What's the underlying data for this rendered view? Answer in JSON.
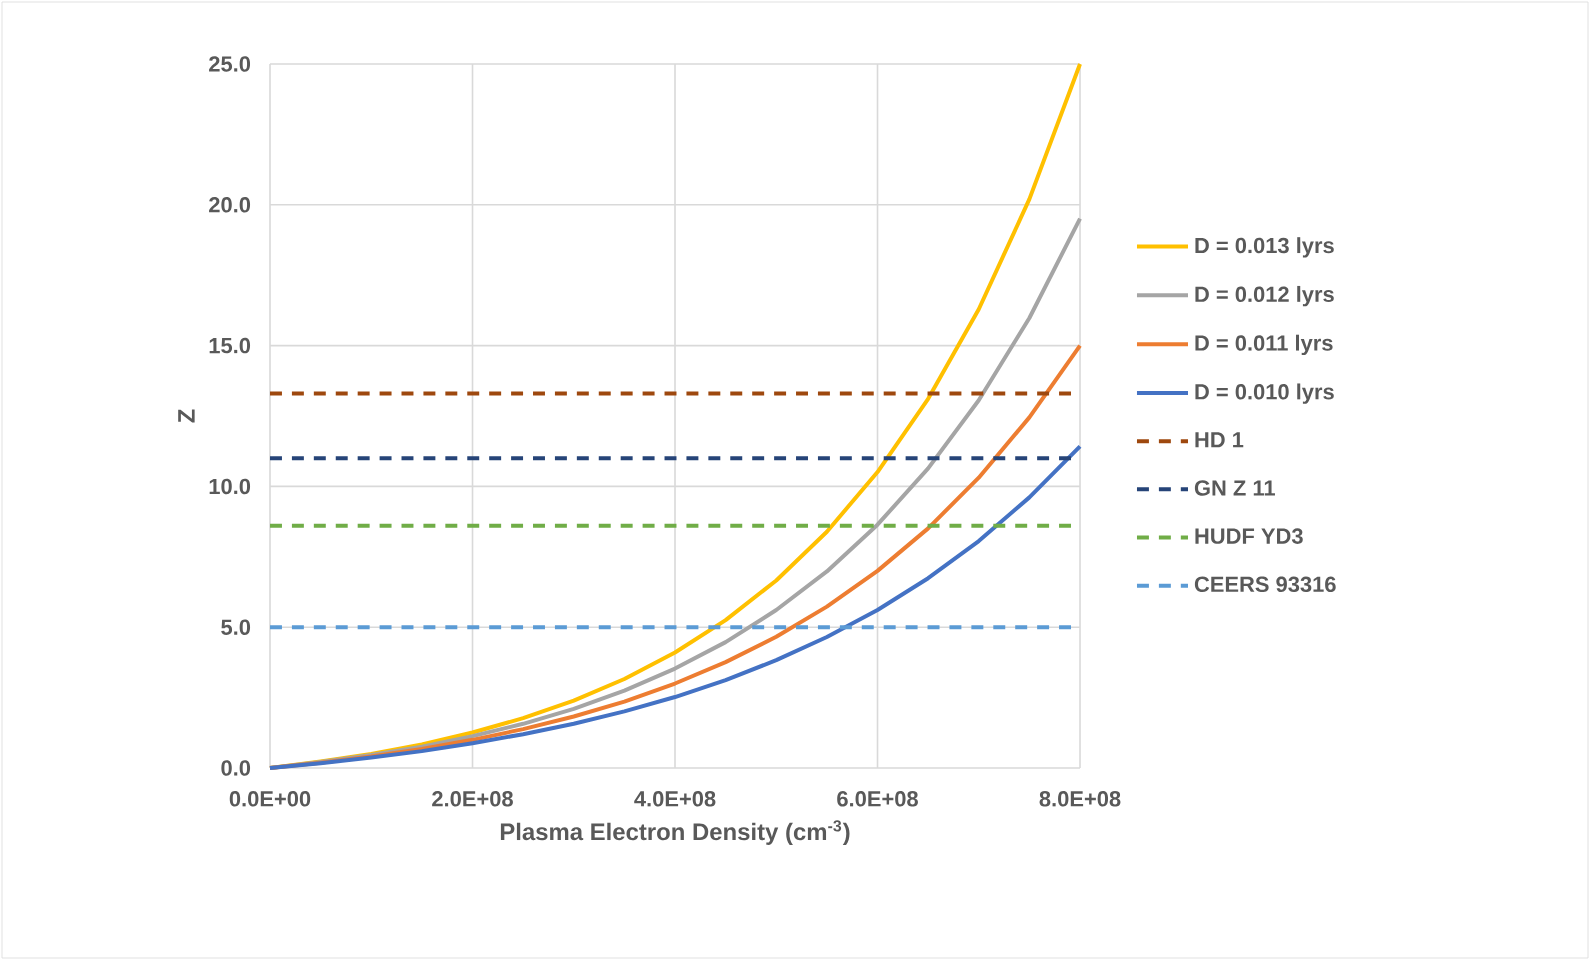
{
  "chart_data": {
    "type": "line",
    "xlabel": "Plasma Electron Density (cm$^{-3}$)",
    "ylabel": "Z",
    "x": [
      0,
      50000000,
      100000000,
      150000000,
      200000000,
      250000000,
      300000000,
      350000000,
      400000000,
      450000000,
      500000000,
      550000000,
      600000000,
      650000000,
      700000000,
      750000000,
      800000000
    ],
    "series": [
      {
        "name": "D = 0.013 lyrs",
        "color": "#ffc000",
        "line_style": "solid",
        "values": [
          0,
          0.23,
          0.5,
          0.84,
          1.26,
          1.77,
          2.39,
          3.16,
          4.1,
          5.25,
          6.66,
          8.39,
          10.51,
          13.11,
          16.29,
          20.2,
          25.0
        ]
      },
      {
        "name": "D = 0.012 lyrs",
        "color": "#a5a5a5",
        "line_style": "solid",
        "values": [
          0,
          0.21,
          0.46,
          0.76,
          1.13,
          1.57,
          2.1,
          2.75,
          3.53,
          4.47,
          5.61,
          6.98,
          8.64,
          10.64,
          13.06,
          15.98,
          19.51
        ]
      },
      {
        "name": "D = 0.011 lyrs",
        "color": "#ed7d31",
        "line_style": "solid",
        "values": [
          0,
          0.19,
          0.41,
          0.68,
          1.0,
          1.38,
          1.83,
          2.36,
          3.0,
          3.76,
          4.66,
          5.73,
          7.0,
          8.51,
          10.31,
          12.45,
          15.0
        ]
      },
      {
        "name": "D = 0.010 lyrs",
        "color": "#4472c4",
        "line_style": "solid",
        "values": [
          0,
          0.17,
          0.37,
          0.6,
          0.88,
          1.2,
          1.57,
          2.01,
          2.52,
          3.12,
          3.83,
          4.65,
          5.61,
          6.74,
          8.06,
          9.61,
          11.42
        ]
      },
      {
        "name": "HD 1",
        "color": "#9e480e",
        "line_style": "dashed",
        "values": [
          13.3,
          13.3,
          13.3,
          13.3,
          13.3,
          13.3,
          13.3,
          13.3,
          13.3,
          13.3,
          13.3,
          13.3,
          13.3,
          13.3,
          13.3,
          13.3,
          13.3
        ]
      },
      {
        "name": "GN Z 11",
        "color": "#264478",
        "line_style": "dashed",
        "values": [
          11.0,
          11.0,
          11.0,
          11.0,
          11.0,
          11.0,
          11.0,
          11.0,
          11.0,
          11.0,
          11.0,
          11.0,
          11.0,
          11.0,
          11.0,
          11.0,
          11.0
        ]
      },
      {
        "name": "HUDF YD3",
        "color": "#70ad47",
        "line_style": "dashed",
        "values": [
          8.6,
          8.6,
          8.6,
          8.6,
          8.6,
          8.6,
          8.6,
          8.6,
          8.6,
          8.6,
          8.6,
          8.6,
          8.6,
          8.6,
          8.6,
          8.6,
          8.6
        ]
      },
      {
        "name": "CEERS 93316",
        "color": "#5b9bd5",
        "line_style": "dashed",
        "values": [
          5.0,
          5.0,
          5.0,
          5.0,
          5.0,
          5.0,
          5.0,
          5.0,
          5.0,
          5.0,
          5.0,
          5.0,
          5.0,
          5.0,
          5.0,
          5.0,
          5.0
        ]
      }
    ],
    "xlim": [
      0,
      800000000
    ],
    "xticks": [
      {
        "value": 0,
        "label": "0.0E+00"
      },
      {
        "value": 200000000,
        "label": "2.0E+08"
      },
      {
        "value": 400000000,
        "label": "4.0E+08"
      },
      {
        "value": 600000000,
        "label": "6.0E+08"
      },
      {
        "value": 800000000,
        "label": "8.0E+08"
      }
    ],
    "ylim": [
      0,
      25
    ],
    "yticks": [
      {
        "value": 0,
        "label": "0.0"
      },
      {
        "value": 5,
        "label": "5.0"
      },
      {
        "value": 10,
        "label": "10.0"
      },
      {
        "value": 15,
        "label": "15.0"
      },
      {
        "value": 20,
        "label": "20.0"
      },
      {
        "value": 25,
        "label": "25.0"
      }
    ],
    "grid": true,
    "legend": "right",
    "marker": "none"
  }
}
